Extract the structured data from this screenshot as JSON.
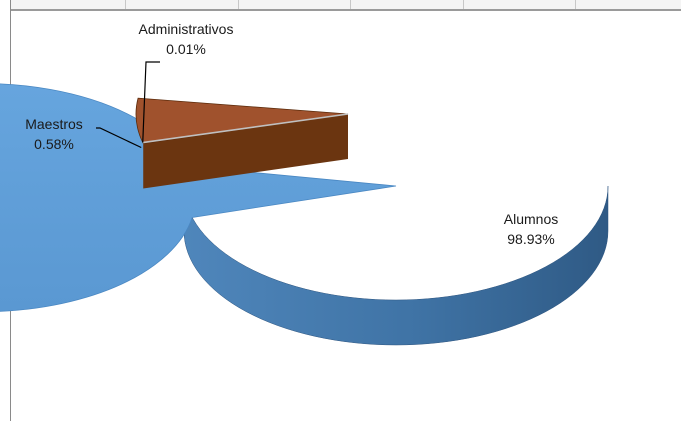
{
  "chart_data": {
    "type": "pie",
    "style": "3d-exploded",
    "title": "",
    "slices": [
      {
        "label": "Alumnos",
        "value": 98.93,
        "value_label": "98.93%",
        "color": "#5b9bd5",
        "side_color": "#3b6e9e"
      },
      {
        "label": "Maestros",
        "value": 0.58,
        "value_label": "0.58%",
        "color": "#a0522d",
        "side_color": "#6b3510"
      },
      {
        "label": "Administrativos",
        "value": 0.01,
        "value_label": "0.01%",
        "color": "#c0c0c0",
        "side_color": "#8a8a8a"
      }
    ]
  }
}
